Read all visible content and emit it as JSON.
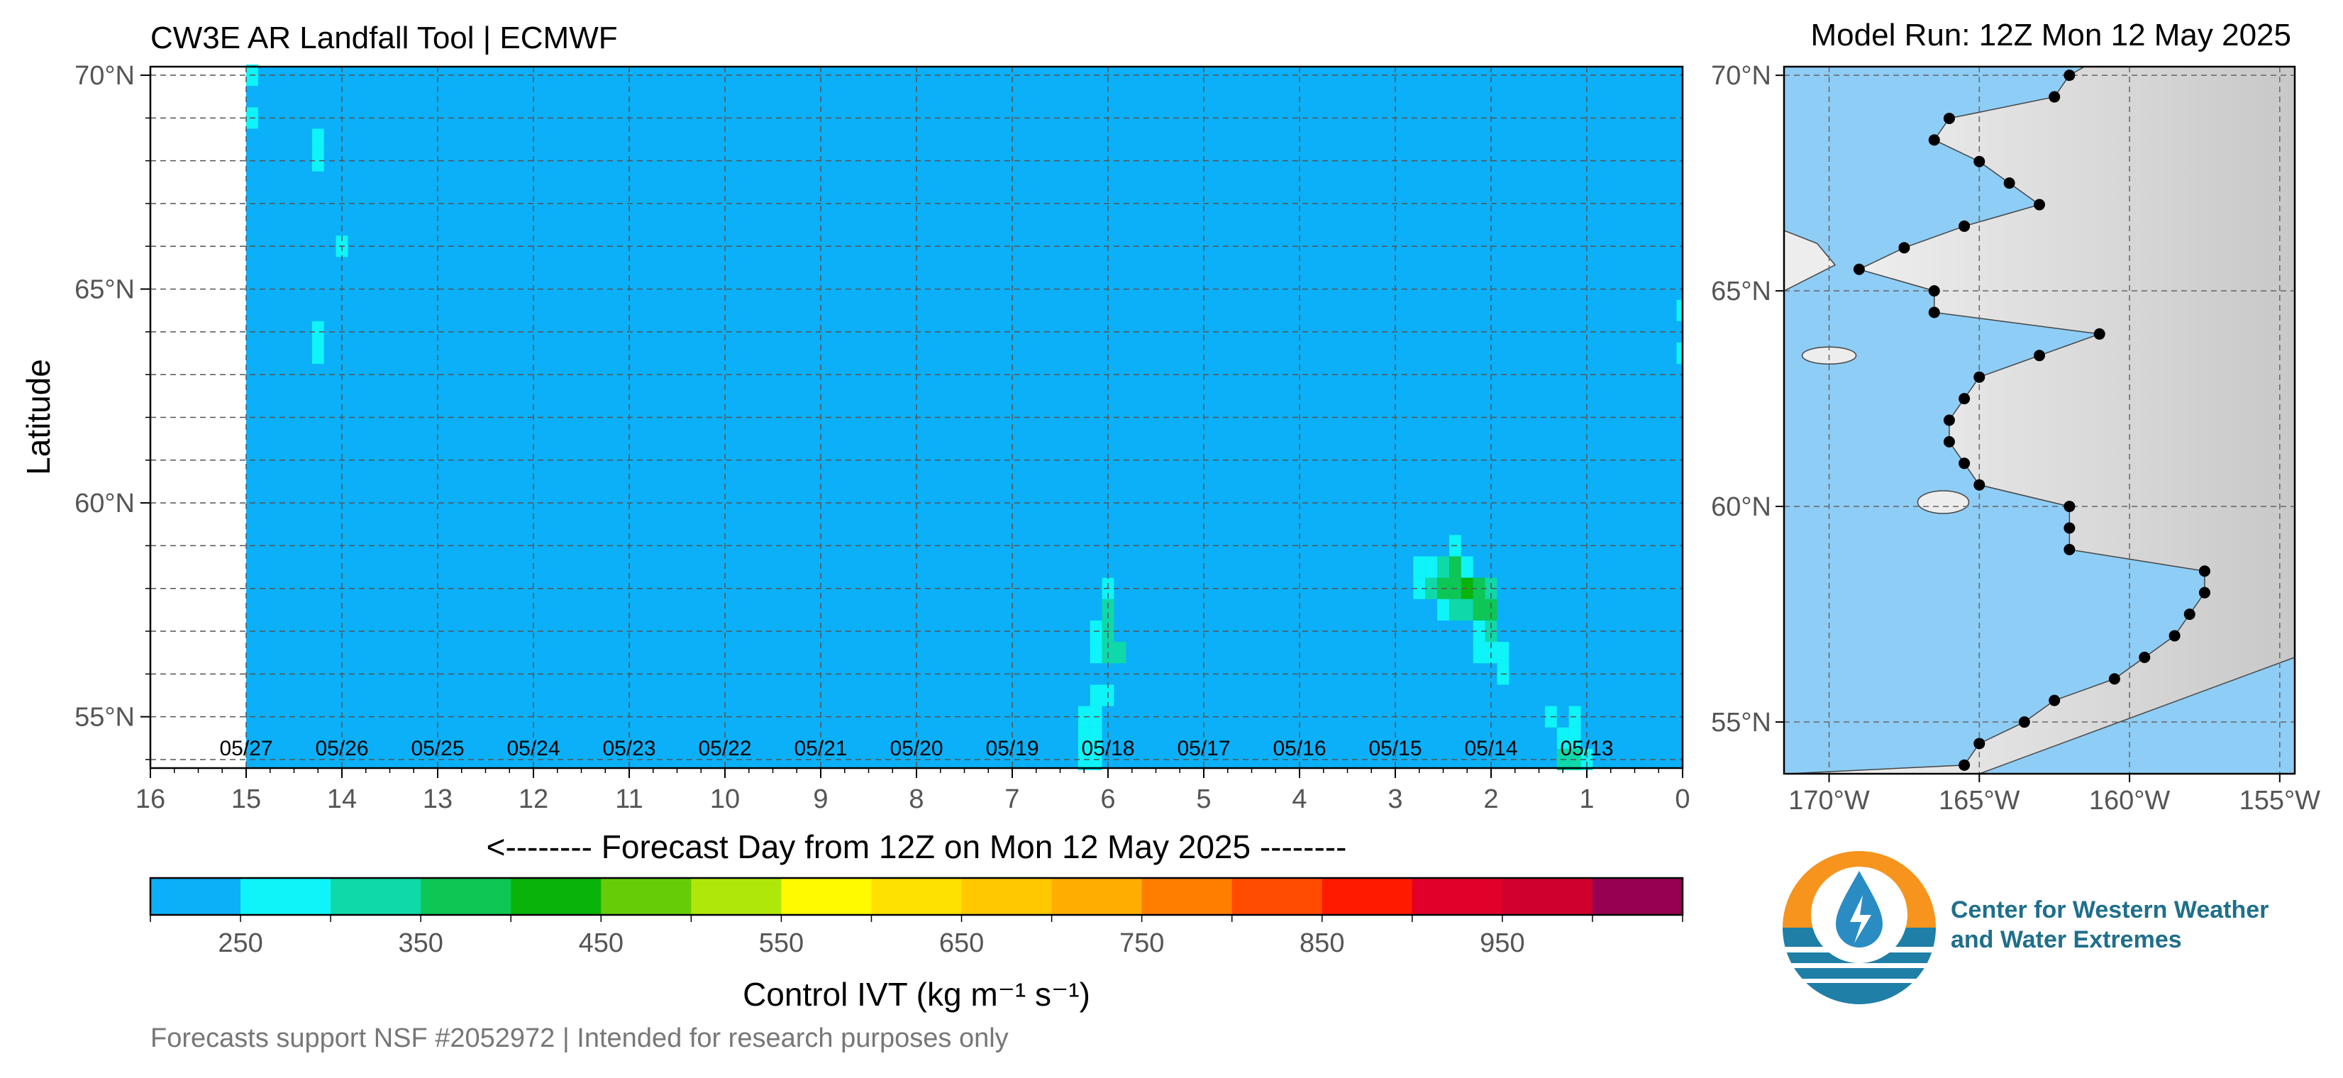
{
  "header": {
    "title": "CW3E AR Landfall Tool | ECMWF",
    "model_run": "Model Run: 12Z Mon 12 May 2025"
  },
  "footer": {
    "text": "Forecasts support NSF #2052972 | Intended for research purposes only"
  },
  "logo": {
    "line1": "Center for Western Weather",
    "line2": "and Water Extremes"
  },
  "colors": {
    "background_ivt": "#0bb0f8",
    "ocean": "#8ecdf5",
    "land": "#ededed"
  },
  "chart_data": [
    {
      "type": "heatmap",
      "title": "CW3E AR Landfall Tool | ECMWF",
      "xlabel": "<-------- Forecast Day from 12Z on Mon 12 May 2025 --------",
      "ylabel": "Latitude",
      "x_ticks": [
        "16",
        "15",
        "14",
        "13",
        "12",
        "11",
        "10",
        "9",
        "8",
        "7",
        "6",
        "5",
        "4",
        "3",
        "2",
        "1",
        "0"
      ],
      "xlim": [
        16,
        0
      ],
      "y_ticks": [
        "70°N",
        "65°N",
        "60°N",
        "55°N"
      ],
      "ylim": [
        53.8,
        70.2
      ],
      "date_labels": [
        {
          "x": 15,
          "label": "05/27"
        },
        {
          "x": 14,
          "label": "05/26"
        },
        {
          "x": 13,
          "label": "05/25"
        },
        {
          "x": 12,
          "label": "05/24"
        },
        {
          "x": 11,
          "label": "05/23"
        },
        {
          "x": 10,
          "label": "05/22"
        },
        {
          "x": 9,
          "label": "05/21"
        },
        {
          "x": 8,
          "label": "05/20"
        },
        {
          "x": 7,
          "label": "05/19"
        },
        {
          "x": 6,
          "label": "05/18"
        },
        {
          "x": 5,
          "label": "05/17"
        },
        {
          "x": 4,
          "label": "05/16"
        },
        {
          "x": 3,
          "label": "05/15"
        },
        {
          "x": 2,
          "label": "05/14"
        },
        {
          "x": 1,
          "label": "05/13"
        }
      ],
      "data_extent_x": [
        15,
        0
      ],
      "background_value": 225,
      "grid": true,
      "cells": [
        {
          "x": 15.0,
          "y": 70.0,
          "v": 275
        },
        {
          "x": 15.0,
          "y": 69.0,
          "v": 275
        },
        {
          "x": 14.25,
          "y": 68.5,
          "v": 275
        },
        {
          "x": 14.25,
          "y": 68.0,
          "v": 275
        },
        {
          "x": 14.0,
          "y": 66.0,
          "v": 275
        },
        {
          "x": 14.25,
          "y": 64.0,
          "v": 275
        },
        {
          "x": 14.25,
          "y": 63.5,
          "v": 275
        },
        {
          "x": 0.0,
          "y": 64.5,
          "v": 275
        },
        {
          "x": 0.0,
          "y": 63.5,
          "v": 275
        },
        {
          "x": 6.0,
          "y": 58.0,
          "v": 275
        },
        {
          "x": 6.0,
          "y": 57.5,
          "v": 325
        },
        {
          "x": 6.125,
          "y": 57.0,
          "v": 275
        },
        {
          "x": 6.0,
          "y": 57.0,
          "v": 325
        },
        {
          "x": 6.0,
          "y": 56.5,
          "v": 325
        },
        {
          "x": 5.875,
          "y": 56.5,
          "v": 325
        },
        {
          "x": 6.125,
          "y": 56.5,
          "v": 275
        },
        {
          "x": 6.125,
          "y": 55.5,
          "v": 275
        },
        {
          "x": 6.0,
          "y": 55.5,
          "v": 275
        },
        {
          "x": 6.25,
          "y": 55.0,
          "v": 275
        },
        {
          "x": 6.125,
          "y": 55.0,
          "v": 275
        },
        {
          "x": 6.25,
          "y": 54.5,
          "v": 275
        },
        {
          "x": 6.125,
          "y": 54.5,
          "v": 275
        },
        {
          "x": 6.25,
          "y": 54.0,
          "v": 275
        },
        {
          "x": 6.125,
          "y": 54.0,
          "v": 275
        },
        {
          "x": 2.375,
          "y": 59.0,
          "v": 275
        },
        {
          "x": 2.75,
          "y": 58.5,
          "v": 275
        },
        {
          "x": 2.625,
          "y": 58.5,
          "v": 275
        },
        {
          "x": 2.5,
          "y": 58.5,
          "v": 325
        },
        {
          "x": 2.375,
          "y": 58.5,
          "v": 375
        },
        {
          "x": 2.25,
          "y": 58.5,
          "v": 275
        },
        {
          "x": 2.75,
          "y": 58.0,
          "v": 275
        },
        {
          "x": 2.625,
          "y": 58.0,
          "v": 325
        },
        {
          "x": 2.5,
          "y": 58.0,
          "v": 375
        },
        {
          "x": 2.375,
          "y": 58.0,
          "v": 375
        },
        {
          "x": 2.25,
          "y": 58.0,
          "v": 425
        },
        {
          "x": 2.125,
          "y": 58.0,
          "v": 375
        },
        {
          "x": 2.0,
          "y": 58.0,
          "v": 325
        },
        {
          "x": 2.5,
          "y": 57.5,
          "v": 275
        },
        {
          "x": 2.375,
          "y": 57.5,
          "v": 325
        },
        {
          "x": 2.25,
          "y": 57.5,
          "v": 325
        },
        {
          "x": 2.125,
          "y": 57.5,
          "v": 375
        },
        {
          "x": 2.0,
          "y": 57.5,
          "v": 375
        },
        {
          "x": 2.125,
          "y": 57.0,
          "v": 275
        },
        {
          "x": 2.0,
          "y": 57.0,
          "v": 325
        },
        {
          "x": 2.125,
          "y": 56.5,
          "v": 275
        },
        {
          "x": 2.0,
          "y": 56.5,
          "v": 275
        },
        {
          "x": 1.875,
          "y": 56.5,
          "v": 275
        },
        {
          "x": 1.875,
          "y": 56.0,
          "v": 275
        },
        {
          "x": 1.375,
          "y": 55.0,
          "v": 275
        },
        {
          "x": 1.125,
          "y": 55.0,
          "v": 275
        },
        {
          "x": 1.25,
          "y": 54.5,
          "v": 275
        },
        {
          "x": 1.125,
          "y": 54.5,
          "v": 275
        },
        {
          "x": 1.25,
          "y": 54.0,
          "v": 325
        },
        {
          "x": 1.125,
          "y": 54.0,
          "v": 325
        },
        {
          "x": 1.0,
          "y": 54.0,
          "v": 275
        }
      ]
    },
    {
      "type": "colorbar",
      "label": "Control IVT (kg m⁻¹ s⁻¹)",
      "bounds": [
        200,
        250,
        300,
        350,
        400,
        450,
        500,
        550,
        600,
        650,
        700,
        750,
        800,
        850,
        900,
        950,
        1000,
        1050
      ],
      "colors": [
        "#0bb0f8",
        "#0ff4f8",
        "#0fd9a8",
        "#0dc654",
        "#0ab30a",
        "#67cc08",
        "#b0e70a",
        "#fffa00",
        "#ffe100",
        "#ffc800",
        "#ffae00",
        "#ff7e00",
        "#ff4c00",
        "#ff1a00",
        "#e1002a",
        "#d0002e",
        "#970052",
        "#5c008f"
      ],
      "tick_labels": [
        "250",
        "350",
        "450",
        "550",
        "650",
        "750",
        "850",
        "950"
      ]
    },
    {
      "type": "map",
      "title": "Model Run: 12Z Mon 12 May 2025",
      "lon_ticks": [
        "170°W",
        "165°W",
        "160°W",
        "155°W"
      ],
      "lat_ticks": [
        "70°N",
        "65°N",
        "60°N",
        "55°N"
      ],
      "lon_range": [
        -171.5,
        -154.5
      ],
      "lat_range": [
        53.8,
        70.2
      ],
      "landfall_points": [
        {
          "lon": -162.0,
          "lat": 70.0
        },
        {
          "lon": -162.5,
          "lat": 69.5
        },
        {
          "lon": -166.0,
          "lat": 69.0
        },
        {
          "lon": -166.5,
          "lat": 68.5
        },
        {
          "lon": -165.0,
          "lat": 68.0
        },
        {
          "lon": -164.0,
          "lat": 67.5
        },
        {
          "lon": -163.0,
          "lat": 67.0
        },
        {
          "lon": -165.5,
          "lat": 66.5
        },
        {
          "lon": -167.5,
          "lat": 66.0
        },
        {
          "lon": -169.0,
          "lat": 65.5
        },
        {
          "lon": -166.5,
          "lat": 65.0
        },
        {
          "lon": -166.5,
          "lat": 64.5
        },
        {
          "lon": -161.0,
          "lat": 64.0
        },
        {
          "lon": -163.0,
          "lat": 63.5
        },
        {
          "lon": -165.0,
          "lat": 63.0
        },
        {
          "lon": -165.5,
          "lat": 62.5
        },
        {
          "lon": -166.0,
          "lat": 62.0
        },
        {
          "lon": -166.0,
          "lat": 61.5
        },
        {
          "lon": -165.5,
          "lat": 61.0
        },
        {
          "lon": -165.0,
          "lat": 60.5
        },
        {
          "lon": -162.0,
          "lat": 60.0
        },
        {
          "lon": -162.0,
          "lat": 59.5
        },
        {
          "lon": -162.0,
          "lat": 59.0
        },
        {
          "lon": -157.5,
          "lat": 58.5
        },
        {
          "lon": -157.5,
          "lat": 58.0
        },
        {
          "lon": -158.0,
          "lat": 57.5
        },
        {
          "lon": -158.5,
          "lat": 57.0
        },
        {
          "lon": -159.5,
          "lat": 56.5
        },
        {
          "lon": -160.5,
          "lat": 56.0
        },
        {
          "lon": -162.5,
          "lat": 55.5
        },
        {
          "lon": -163.5,
          "lat": 55.0
        },
        {
          "lon": -165.0,
          "lat": 54.5
        },
        {
          "lon": -165.5,
          "lat": 54.0
        }
      ]
    }
  ]
}
